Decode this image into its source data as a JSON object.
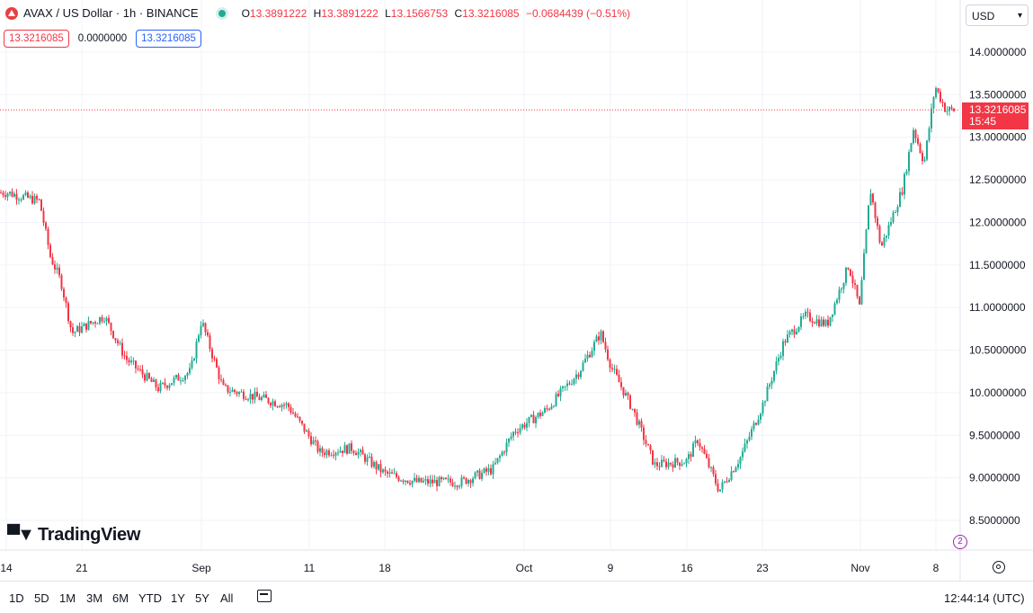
{
  "legend": {
    "title": "AVAX / US Dollar · 1h · BINANCE",
    "o_label": "O",
    "o": "13.3891222",
    "h_label": "H",
    "h": "13.3891222",
    "l_label": "L",
    "l": "13.1566753",
    "c_label": "C",
    "c": "13.3216085",
    "change": "−0.0684439 (−0.51%)"
  },
  "inputs": {
    "sell": "13.3216085",
    "spread": "0.0000000",
    "buy": "13.3216085"
  },
  "currency": "USD",
  "price_tag": {
    "price": "13.3216085",
    "countdown": "15:45"
  },
  "brand": "TradingView",
  "timeframes": [
    "1D",
    "5D",
    "1M",
    "3M",
    "6M",
    "YTD",
    "1Y",
    "5Y",
    "All"
  ],
  "clock": "12:44:14 (UTC)",
  "bubble_label": "2",
  "colors": {
    "up": "#22ab94",
    "down": "#f23645",
    "grid": "#f0f3fa",
    "text": "#131722",
    "accent": "#2962ff"
  },
  "chart_data": {
    "type": "candlestick",
    "title": "AVAX / US Dollar · 1h · BINANCE",
    "ylim": [
      8.5,
      14.0
    ],
    "y_ticks": [
      "14.0000000",
      "13.5000000",
      "13.0000000",
      "12.5000000",
      "12.0000000",
      "11.5000000",
      "11.0000000",
      "10.5000000",
      "10.0000000",
      "9.5000000",
      "9.0000000",
      "8.5000000"
    ],
    "x_ticks": [
      "14",
      "21",
      "Sep",
      "11",
      "18",
      "Oct",
      "9",
      "16",
      "23",
      "Nov",
      "8"
    ],
    "last_price": 13.3216085,
    "approx_close_path": [
      {
        "t": "Aug 14",
        "close": 12.35
      },
      {
        "t": "Aug 17",
        "close": 12.25
      },
      {
        "t": "Aug 18",
        "close": 11.6
      },
      {
        "t": "Aug 19",
        "close": 11.3
      },
      {
        "t": "Aug 20",
        "close": 10.7
      },
      {
        "t": "Aug 23",
        "close": 10.9
      },
      {
        "t": "Aug 25",
        "close": 10.4
      },
      {
        "t": "Aug 28",
        "close": 10.05
      },
      {
        "t": "Aug 31",
        "close": 10.25
      },
      {
        "t": "Sep 1",
        "close": 10.85
      },
      {
        "t": "Sep 3",
        "close": 10.05
      },
      {
        "t": "Sep 6",
        "close": 9.95
      },
      {
        "t": "Sep 9",
        "close": 9.85
      },
      {
        "t": "Sep 12",
        "close": 9.3
      },
      {
        "t": "Sep 15",
        "close": 9.35
      },
      {
        "t": "Sep 18",
        "close": 9.05
      },
      {
        "t": "Sep 21",
        "close": 8.95
      },
      {
        "t": "Sep 25",
        "close": 8.95
      },
      {
        "t": "Sep 28",
        "close": 9.1
      },
      {
        "t": "Sep 30",
        "close": 9.55
      },
      {
        "t": "Oct 3",
        "close": 9.8
      },
      {
        "t": "Oct 6",
        "close": 10.25
      },
      {
        "t": "Oct 8",
        "close": 10.7
      },
      {
        "t": "Oct 9",
        "close": 10.3
      },
      {
        "t": "Oct 11",
        "close": 9.8
      },
      {
        "t": "Oct 13",
        "close": 9.15
      },
      {
        "t": "Oct 16",
        "close": 9.2
      },
      {
        "t": "Oct 17",
        "close": 9.45
      },
      {
        "t": "Oct 19",
        "close": 8.85
      },
      {
        "t": "Oct 21",
        "close": 9.25
      },
      {
        "t": "Oct 23",
        "close": 9.85
      },
      {
        "t": "Oct 25",
        "close": 10.6
      },
      {
        "t": "Oct 27",
        "close": 10.9
      },
      {
        "t": "Oct 29",
        "close": 10.8
      },
      {
        "t": "Oct 31",
        "close": 11.5
      },
      {
        "t": "Nov 1",
        "close": 11.0
      },
      {
        "t": "Nov 2",
        "close": 12.4
      },
      {
        "t": "Nov 3",
        "close": 11.7
      },
      {
        "t": "Nov 5",
        "close": 12.4
      },
      {
        "t": "Nov 6",
        "close": 13.1
      },
      {
        "t": "Nov 7",
        "close": 12.7
      },
      {
        "t": "Nov 8",
        "close": 13.6
      },
      {
        "t": "Nov 9",
        "close": 13.32
      }
    ]
  }
}
